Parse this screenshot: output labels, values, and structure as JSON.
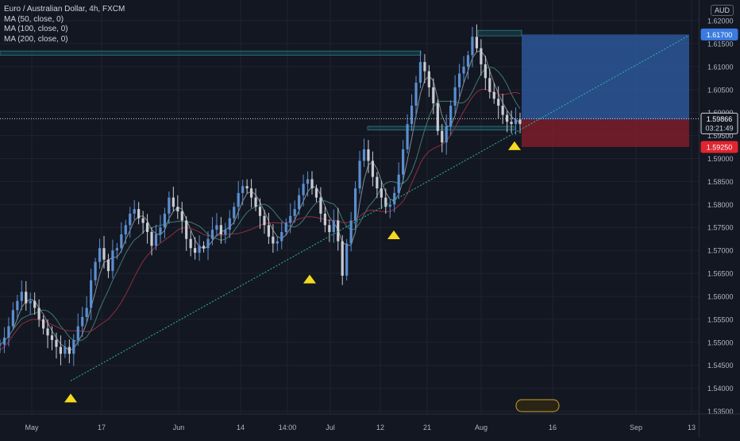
{
  "header": {
    "title": "Euro / Australian Dollar, 4h, FXCM",
    "indicators": [
      "MA (50, close, 0)",
      "MA (100, close, 0)",
      "MA (200, close, 0)"
    ]
  },
  "currency": "AUD",
  "chart_data": {
    "type": "line",
    "title": "Euro / Australian Dollar, 4h, FXCM",
    "y_ticks": [
      "1.62000",
      "1.61500",
      "1.61000",
      "1.60500",
      "1.60000",
      "1.59500",
      "1.59000",
      "1.58500",
      "1.58000",
      "1.57500",
      "1.57000",
      "1.56500",
      "1.56000",
      "1.55500",
      "1.55000",
      "1.54500",
      "1.54000",
      "1.53500"
    ],
    "ylim": [
      1.5344,
      1.6245
    ],
    "x_ticks": [
      "May",
      "17",
      "Jun",
      "14",
      "14:00",
      "Jul",
      "12",
      "21",
      "Aug",
      "16",
      "Sep",
      "13"
    ],
    "price_labels": {
      "take_profit": "1.61700",
      "current": "1.59866",
      "countdown": "03:21:49",
      "entry": "1.59850",
      "stop": "1.59250"
    },
    "price_series": [
      1.5495,
      1.551,
      1.5535,
      1.557,
      1.559,
      1.561,
      1.5585,
      1.559,
      1.5575,
      1.555,
      1.553,
      1.5515,
      1.5505,
      1.549,
      1.5475,
      1.549,
      1.5475,
      1.5505,
      1.5535,
      1.5555,
      1.5575,
      1.5635,
      1.5675,
      1.5705,
      1.568,
      1.5655,
      1.57,
      1.5705,
      1.5735,
      1.5755,
      1.578,
      1.579,
      1.577,
      1.576,
      1.574,
      1.571,
      1.5735,
      1.575,
      1.578,
      1.5815,
      1.5795,
      1.5785,
      1.5765,
      1.5725,
      1.5705,
      1.5695,
      1.571,
      1.5705,
      1.5725,
      1.5745,
      1.5755,
      1.5735,
      1.5745,
      1.577,
      1.5795,
      1.5825,
      1.584,
      1.5835,
      1.5815,
      1.5795,
      1.5775,
      1.5755,
      1.573,
      1.5715,
      1.572,
      1.574,
      1.576,
      1.5775,
      1.579,
      1.582,
      1.5845,
      1.5855,
      1.5835,
      1.5815,
      1.578,
      1.5755,
      1.574,
      1.5765,
      1.572,
      1.5645,
      1.5715,
      1.5765,
      1.5835,
      1.5895,
      1.592,
      1.5895,
      1.586,
      1.5835,
      1.5815,
      1.5795,
      1.58,
      1.5825,
      1.5865,
      1.592,
      1.5975,
      1.6015,
      1.6065,
      1.611,
      1.609,
      1.6055,
      1.602,
      1.596,
      1.5935,
      1.597,
      1.6015,
      1.6055,
      1.6085,
      1.61,
      1.6125,
      1.6165,
      1.614,
      1.6105,
      1.6075,
      1.6045,
      1.603,
      1.6015,
      1.5995,
      1.598,
      1.5975,
      1.5985,
      1.5975
    ],
    "price_x_range": [
      0,
      655
    ],
    "moving_averages": [
      {
        "name": "MA (50, close, 0)",
        "color": "#7f8d92"
      },
      {
        "name": "MA (100, close, 0)",
        "color": "#3f7a70"
      },
      {
        "name": "MA (200, close, 0)",
        "color": "#8e2f3e"
      }
    ],
    "trendline": {
      "from": [
        89,
        1.5416
      ],
      "to": [
        868,
        1.6168
      ],
      "color": "#2fb8a8"
    },
    "position": {
      "take_profit": 1.617,
      "entry": 1.5985,
      "stop": 1.5925,
      "profit_color": "#2f5fa8",
      "loss_color": "#8a1f2b"
    },
    "zones": [
      {
        "x": [
          0,
          530
        ],
        "y": [
          1.6125,
          1.6134
        ]
      },
      {
        "x": [
          602,
          657
        ],
        "y": [
          1.6167,
          1.6179
        ]
      },
      {
        "x": [
          463,
          648
        ],
        "y": [
          1.5962,
          1.597
        ]
      }
    ],
    "markers_bar": [
      4,
      38,
      49,
      69
    ],
    "markers_x": [
      89,
      390,
      496,
      648
    ],
    "markers_y": [
      1.5378,
      1.5637,
      1.5733,
      1.5927
    ],
    "grid": true
  }
}
